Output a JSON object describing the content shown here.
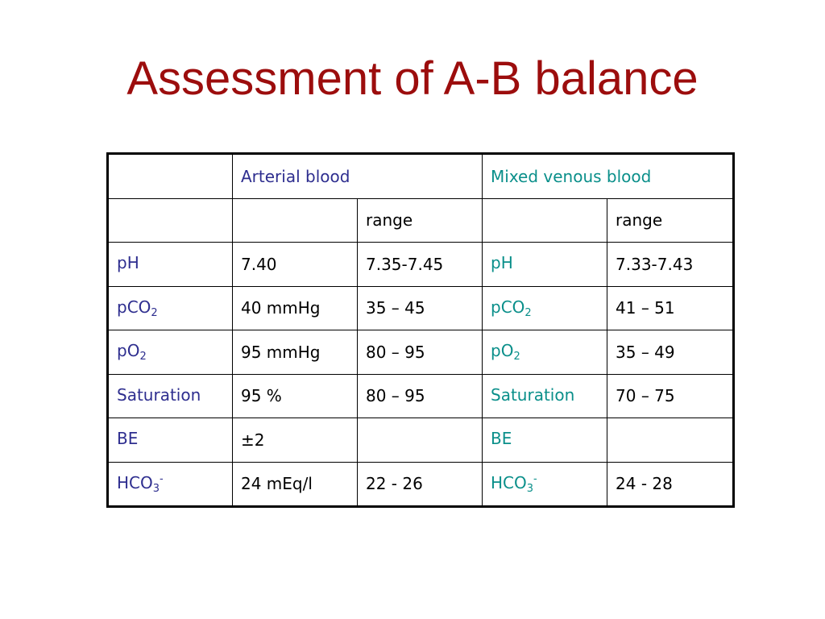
{
  "slide": {
    "title": "Assessment of A-B balance"
  },
  "colors": {
    "title": "#9c0d0d",
    "arterial_labels": "#2e2e8f",
    "venous_labels": "#0a8f8a"
  },
  "table": {
    "header": {
      "arterial": "Arterial blood",
      "venous": "Mixed venous blood"
    },
    "subheader": {
      "arterial_range": "range",
      "venous_range": "range"
    },
    "rows": [
      {
        "a_base": "pH",
        "a_sub": "",
        "a_sup": "",
        "a_value": "7.40",
        "a_range": "7.35-7.45",
        "v_base": "pH",
        "v_sub": "",
        "v_sup": "",
        "v_range": "7.33-7.43"
      },
      {
        "a_base": "pCO",
        "a_sub": "2",
        "a_sup": "",
        "a_value": "40 mmHg",
        "a_range": "35 – 45",
        "v_base": "pCO",
        "v_sub": "2",
        "v_sup": "",
        "v_range": "41 – 51"
      },
      {
        "a_base": "pO",
        "a_sub": "2",
        "a_sup": "",
        "a_value": "95 mmHg",
        "a_range": "80 – 95",
        "v_base": "pO",
        "v_sub": "2",
        "v_sup": "",
        "v_range": "35 – 49"
      },
      {
        "a_base": "Saturation",
        "a_sub": "",
        "a_sup": "",
        "a_value": "95 %",
        "a_range": "80 – 95",
        "v_base": "Saturation",
        "v_sub": "",
        "v_sup": "",
        "v_range": "70 – 75"
      },
      {
        "a_base": "BE",
        "a_sub": "",
        "a_sup": "",
        "a_value": "±2",
        "a_range": "",
        "v_base": "BE",
        "v_sub": "",
        "v_sup": "",
        "v_range": ""
      },
      {
        "a_base": "HCO",
        "a_sub": "3",
        "a_sup": "-",
        "a_value": "24 mEq/l",
        "a_range": "22 - 26",
        "v_base": "HCO",
        "v_sub": "3",
        "v_sup": "-",
        "v_range": "24 - 28"
      }
    ]
  }
}
